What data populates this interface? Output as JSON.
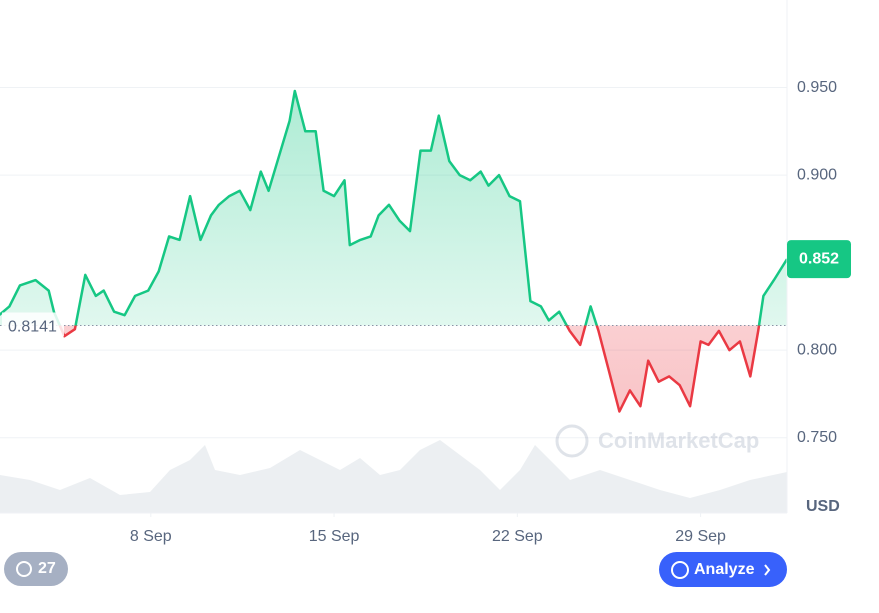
{
  "chart_data": {
    "type": "line",
    "x": [
      2.2,
      2.6,
      3.0,
      3.6,
      4.1,
      4.3,
      4.7,
      5.1,
      5.5,
      5.9,
      6.2,
      6.6,
      7.0,
      7.4,
      7.9,
      8.3,
      8.7,
      9.1,
      9.5,
      9.9,
      10.3,
      10.6,
      11.0,
      11.4,
      11.8,
      12.2,
      12.5,
      12.9,
      13.3,
      13.5,
      13.9,
      14.3,
      14.6,
      15.0,
      15.4,
      15.6,
      16.0,
      16.4,
      16.7,
      17.1,
      17.5,
      17.9,
      18.3,
      18.7,
      19.0,
      19.4,
      19.8,
      20.2,
      20.6,
      20.9,
      21.3,
      21.7,
      22.1,
      22.5,
      22.9,
      23.2,
      23.6,
      24.0,
      24.4,
      24.8,
      25.1,
      25.5,
      25.9,
      26.3,
      26.7,
      27.0,
      27.4,
      27.8,
      28.2,
      28.6,
      29.0,
      29.3,
      29.7,
      30.1,
      30.5,
      30.9,
      31.2,
      31.4,
      31.8,
      32.3
    ],
    "series": [
      {
        "color_up": "#16c784",
        "color_down": "#ea3943",
        "values": [
          0.82,
          0.825,
          0.837,
          0.84,
          0.834,
          0.822,
          0.808,
          0.812,
          0.843,
          0.831,
          0.834,
          0.822,
          0.82,
          0.831,
          0.834,
          0.845,
          0.865,
          0.863,
          0.888,
          0.863,
          0.877,
          0.883,
          0.888,
          0.891,
          0.88,
          0.902,
          0.891,
          0.911,
          0.931,
          0.948,
          0.925,
          0.925,
          0.891,
          0.888,
          0.897,
          0.86,
          0.863,
          0.865,
          0.877,
          0.883,
          0.874,
          0.868,
          0.914,
          0.914,
          0.934,
          0.908,
          0.9,
          0.897,
          0.902,
          0.894,
          0.9,
          0.888,
          0.885,
          0.828,
          0.825,
          0.817,
          0.822,
          0.811,
          0.803,
          0.825,
          0.811,
          0.788,
          0.765,
          0.777,
          0.768,
          0.794,
          0.782,
          0.785,
          0.78,
          0.768,
          0.805,
          0.803,
          0.811,
          0.8,
          0.805,
          0.785,
          0.811,
          0.831,
          0.84,
          0.852
        ]
      }
    ],
    "baseline": 0.8141,
    "xlim": [
      2.24,
      32.3
    ],
    "xticks": [
      {
        "value": 8,
        "label": "8 Sep"
      },
      {
        "value": 15,
        "label": "15 Sep"
      },
      {
        "value": 22,
        "label": "22 Sep"
      },
      {
        "value": 29,
        "label": "29 Sep"
      }
    ],
    "ylim": [
      0.707,
      1.0
    ],
    "yticks": [
      {
        "value": 0.95,
        "label": "0.950"
      },
      {
        "value": 0.9,
        "label": "0.900"
      },
      {
        "value": 0.8,
        "label": "0.800"
      },
      {
        "value": 0.75,
        "label": "0.750"
      }
    ],
    "grid": true,
    "currency": "USD",
    "watermark": "CoinMarketCap",
    "badge": "27",
    "button": "Analyze"
  }
}
